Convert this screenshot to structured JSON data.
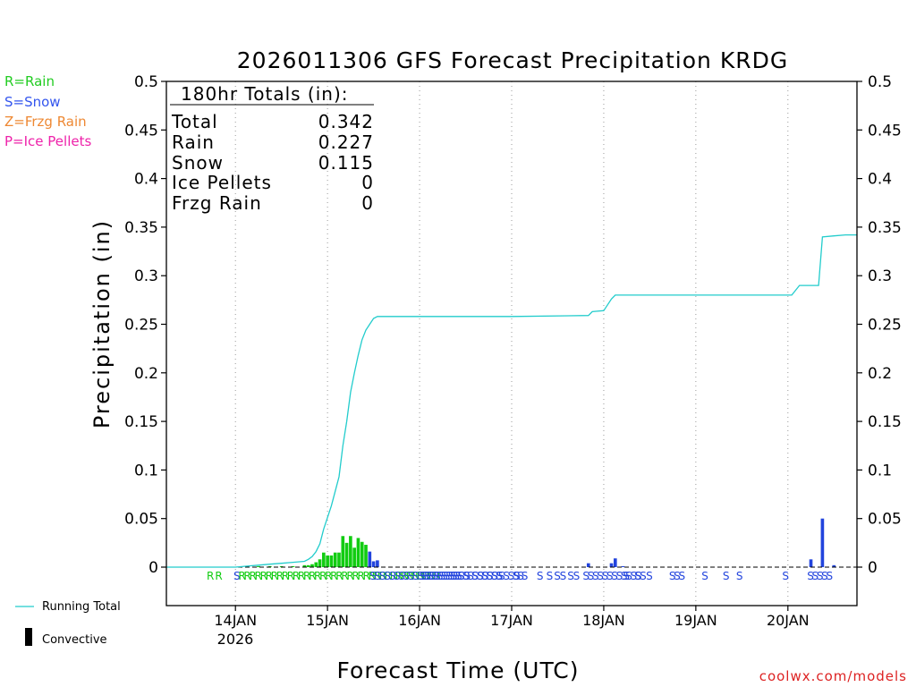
{
  "chart_data": {
    "type": "bar",
    "title": "2026011306 GFS Forecast Precipitation KRDG",
    "xlabel": "Forecast Time (UTC)",
    "ylabel": "Precipitation (in)",
    "ylim": [
      0,
      0.5
    ],
    "yticks": [
      "0",
      "0.05",
      "0.1",
      "0.15",
      "0.2",
      "0.25",
      "0.3",
      "0.35",
      "0.4",
      "0.45",
      "0.5"
    ],
    "xlim_hours": [
      0,
      180
    ],
    "xtick_labels": [
      "14JAN",
      "15JAN",
      "16JAN",
      "17JAN",
      "18JAN",
      "19JAN",
      "20JAN"
    ],
    "xtick_hours": [
      18,
      42,
      66,
      90,
      114,
      138,
      162
    ],
    "year_label": "2026",
    "grid": "vertical dotted at day boundaries",
    "totals": {
      "header": "180hr Totals (in):",
      "rows": [
        {
          "label": "Total",
          "value": "0.342"
        },
        {
          "label": "Rain",
          "value": "0.227"
        },
        {
          "label": "Snow",
          "value": "0.115"
        },
        {
          "label": "Ice Pellets",
          "value": "0"
        },
        {
          "label": "Frzg Rain",
          "value": "0"
        }
      ]
    },
    "type_legend": [
      {
        "text": "R=Rain",
        "color": "#22cc22"
      },
      {
        "text": "S=Snow",
        "color": "#3355ee"
      },
      {
        "text": "Z=Frzg Rain",
        "color": "#ee8833"
      },
      {
        "text": "P=Ice Pellets",
        "color": "#ee22aa"
      }
    ],
    "series_legend": [
      {
        "name": "Running Total",
        "color": "#22cccc"
      },
      {
        "name": "Convective",
        "color": "#000000"
      }
    ],
    "bars": [
      {
        "hour": 24,
        "value": 0.001,
        "type": "rain"
      },
      {
        "hour": 27,
        "value": 0.001,
        "type": "rain"
      },
      {
        "hour": 30,
        "value": 0.001,
        "type": "rain"
      },
      {
        "hour": 33,
        "value": 0.001,
        "type": "rain"
      },
      {
        "hour": 36,
        "value": 0.002,
        "type": "rain"
      },
      {
        "hour": 37,
        "value": 0.002,
        "type": "rain"
      },
      {
        "hour": 38,
        "value": 0.003,
        "type": "rain"
      },
      {
        "hour": 39,
        "value": 0.005,
        "type": "rain"
      },
      {
        "hour": 40,
        "value": 0.008,
        "type": "rain"
      },
      {
        "hour": 41,
        "value": 0.015,
        "type": "rain"
      },
      {
        "hour": 42,
        "value": 0.012,
        "type": "rain"
      },
      {
        "hour": 43,
        "value": 0.012,
        "type": "rain"
      },
      {
        "hour": 44,
        "value": 0.015,
        "type": "rain"
      },
      {
        "hour": 45,
        "value": 0.015,
        "type": "rain"
      },
      {
        "hour": 46,
        "value": 0.032,
        "type": "rain"
      },
      {
        "hour": 47,
        "value": 0.025,
        "type": "rain"
      },
      {
        "hour": 48,
        "value": 0.032,
        "type": "rain"
      },
      {
        "hour": 49,
        "value": 0.02,
        "type": "rain"
      },
      {
        "hour": 50,
        "value": 0.03,
        "type": "rain"
      },
      {
        "hour": 51,
        "value": 0.026,
        "type": "rain"
      },
      {
        "hour": 52,
        "value": 0.023,
        "type": "rain"
      },
      {
        "hour": 53,
        "value": 0.016,
        "type": "snow"
      },
      {
        "hour": 54,
        "value": 0.006,
        "type": "snow"
      },
      {
        "hour": 55,
        "value": 0.007,
        "type": "snow"
      },
      {
        "hour": 110,
        "value": 0.004,
        "type": "snow"
      },
      {
        "hour": 116,
        "value": 0.004,
        "type": "snow"
      },
      {
        "hour": 117,
        "value": 0.009,
        "type": "snow"
      },
      {
        "hour": 119,
        "value": 0.001,
        "type": "snow"
      },
      {
        "hour": 168,
        "value": 0.008,
        "type": "snow"
      },
      {
        "hour": 171,
        "value": 0.05,
        "type": "snow"
      },
      {
        "hour": 174,
        "value": 0.002,
        "type": "snow"
      }
    ],
    "running_total": {
      "hours": [
        0,
        18,
        21,
        24,
        27,
        30,
        33,
        36,
        37,
        38,
        39,
        40,
        41,
        42,
        43,
        44,
        45,
        46,
        47,
        48,
        49,
        50,
        51,
        52,
        53,
        54,
        55,
        58,
        90,
        110,
        111,
        114,
        115,
        116,
        117,
        119,
        162,
        163,
        165,
        168,
        170,
        171,
        174,
        177,
        180
      ],
      "values": [
        0,
        0,
        0.001,
        0.002,
        0.003,
        0.004,
        0.005,
        0.006,
        0.008,
        0.011,
        0.016,
        0.024,
        0.039,
        0.051,
        0.063,
        0.078,
        0.093,
        0.125,
        0.15,
        0.18,
        0.2,
        0.218,
        0.234,
        0.244,
        0.25,
        0.256,
        0.258,
        0.258,
        0.258,
        0.259,
        0.263,
        0.264,
        0.27,
        0.276,
        0.28,
        0.28,
        0.28,
        0.28,
        0.29,
        0.29,
        0.29,
        0.34,
        0.341,
        0.342,
        0.342
      ]
    },
    "type_markers": [
      {
        "hour": 10.5,
        "text": "RR",
        "type": "rain"
      },
      {
        "hour": 17.5,
        "text": "SRRRRRRRRRRRRRRRRRRRRRRRRRRRRRRRRRRRRR",
        "type": "mixed"
      },
      {
        "hour": 53,
        "text": "SSSSSSSSSSSSSSSSSSS",
        "type": "snow"
      },
      {
        "hour": 66,
        "text": "SSSSSSSSSSSSSSSSS",
        "type": "snow"
      },
      {
        "hour": 74,
        "text": "SS",
        "type": "snow"
      },
      {
        "hour": 77.5,
        "text": "SS",
        "type": "snow"
      },
      {
        "hour": 81,
        "text": "SSSSS",
        "type": "snow"
      },
      {
        "hour": 86.5,
        "text": "SSSSS",
        "type": "snow"
      },
      {
        "hour": 90.5,
        "text": "SS",
        "type": "snow"
      },
      {
        "hour": 96.5,
        "text": "S",
        "type": "snow"
      },
      {
        "hour": 99,
        "text": "SS",
        "type": "snow"
      },
      {
        "hour": 102.5,
        "text": "SS",
        "type": "snow"
      },
      {
        "hour": 106,
        "text": "S",
        "type": "snow"
      },
      {
        "hour": 108.5,
        "text": "SSSSSSSSSSSSS",
        "type": "snow"
      },
      {
        "hour": 119,
        "text": "S",
        "type": "snow"
      },
      {
        "hour": 122,
        "text": "S",
        "type": "snow"
      },
      {
        "hour": 125,
        "text": "S",
        "type": "snow"
      },
      {
        "hour": 131,
        "text": "SSS",
        "type": "snow"
      },
      {
        "hour": 139.5,
        "text": "S",
        "type": "snow"
      },
      {
        "hour": 145,
        "text": "S",
        "type": "snow"
      },
      {
        "hour": 148.5,
        "text": "S",
        "type": "snow"
      },
      {
        "hour": 160.5,
        "text": "S",
        "type": "snow"
      },
      {
        "hour": 167,
        "text": "SSSSS",
        "type": "snow"
      }
    ],
    "rain_color": "#11cc11",
    "snow_color": "#2244dd",
    "total_line_color": "#22cccc",
    "credit": "coolwx.com/models",
    "credit_color": "#dd2222"
  }
}
